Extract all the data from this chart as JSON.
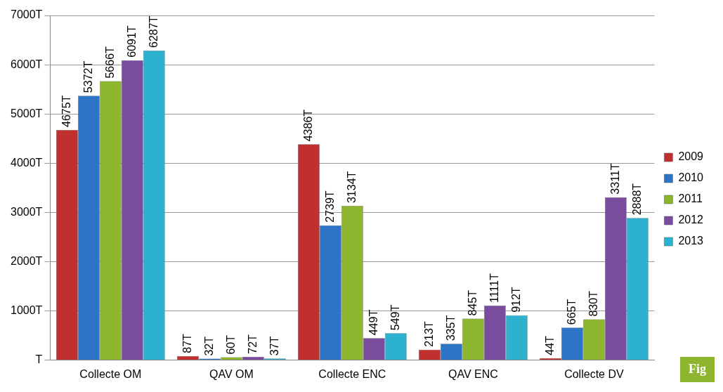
{
  "chart_data": {
    "type": "bar",
    "categories": [
      "Collecte OM",
      "QAV OM",
      "Collecte ENC",
      "QAV ENC",
      "Collecte DV"
    ],
    "series": [
      {
        "name": "2009",
        "color": "#c0302e",
        "values": [
          4675,
          87,
          4386,
          213,
          44
        ],
        "value_labels": [
          "4675T",
          "87T",
          "4386T",
          "213T",
          "44T"
        ]
      },
      {
        "name": "2010",
        "color": "#2e74c6",
        "values": [
          5372,
          32,
          2739,
          335,
          665
        ],
        "value_labels": [
          "5372T",
          "32T",
          "2739T",
          "335T",
          "665T"
        ]
      },
      {
        "name": "2011",
        "color": "#8db52e",
        "values": [
          5666,
          60,
          3134,
          845,
          830
        ],
        "value_labels": [
          "5666T",
          "60T",
          "3134T",
          "845T",
          "830T"
        ]
      },
      {
        "name": "2012",
        "color": "#7a4c9e",
        "values": [
          6091,
          72,
          449,
          1111,
          3311
        ],
        "value_labels": [
          "6091T",
          "72T",
          "449T",
          "1111T",
          "3311T"
        ]
      },
      {
        "name": "2013",
        "color": "#2cb2cf",
        "values": [
          6287,
          37,
          549,
          912,
          2888
        ],
        "value_labels": [
          "6287T",
          "37T",
          "549T",
          "912T",
          "2888T"
        ]
      }
    ],
    "ylim": [
      0,
      7000
    ],
    "yticks": [
      {
        "value": 0,
        "label": "T"
      },
      {
        "value": 1000,
        "label": "1000T"
      },
      {
        "value": 2000,
        "label": "2000T"
      },
      {
        "value": 3000,
        "label": "3000T"
      },
      {
        "value": 4000,
        "label": "4000T"
      },
      {
        "value": 5000,
        "label": "5000T"
      },
      {
        "value": 6000,
        "label": "6000T"
      },
      {
        "value": 7000,
        "label": "7000T"
      }
    ],
    "grid": "y",
    "legend": "right",
    "annotations": [
      "Fig"
    ]
  }
}
